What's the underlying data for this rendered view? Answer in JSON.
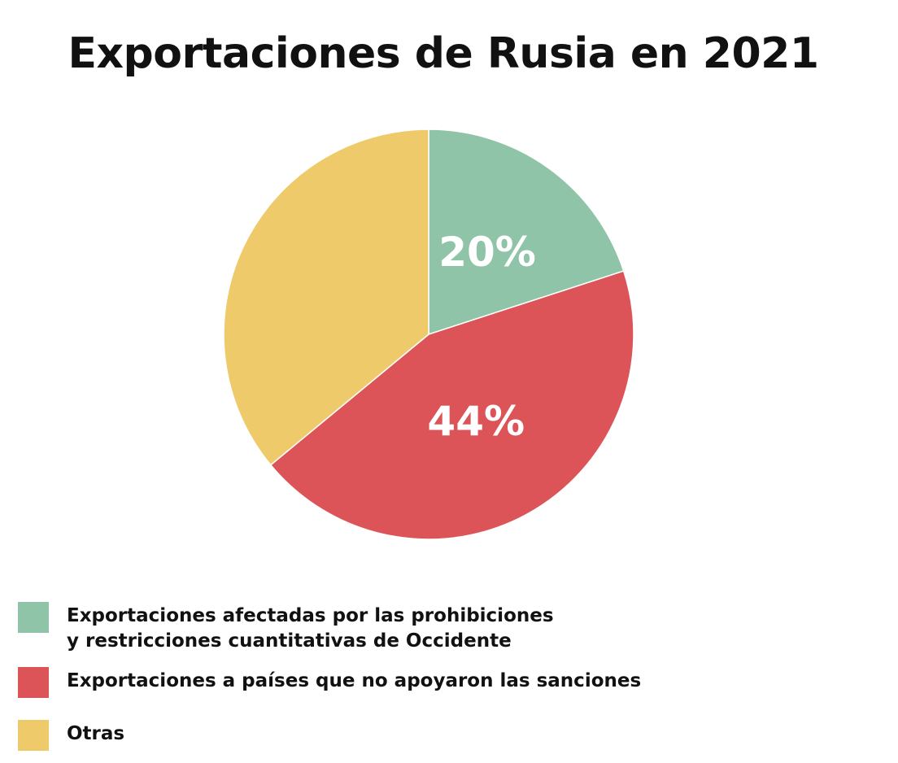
{
  "chart_data": {
    "type": "pie",
    "title": "Exportaciones de Rusia en 2021",
    "slices": [
      {
        "label_lines": [
          "Exportaciones afectadas por las prohibiciones",
          "y restricciones cuantitativas de Occidente"
        ],
        "value": 20,
        "data_label": "20%",
        "color": "#8fc4a8"
      },
      {
        "label_lines": [
          "Exportaciones a países que no apoyaron las sanciones"
        ],
        "value": 44,
        "data_label": "44%",
        "color": "#dc5458"
      },
      {
        "label_lines": [
          "Otras"
        ],
        "value": 36,
        "data_label": "",
        "color": "#efca6a"
      }
    ],
    "legend_position": "bottom-left",
    "start_angle": "top, clockwise"
  }
}
